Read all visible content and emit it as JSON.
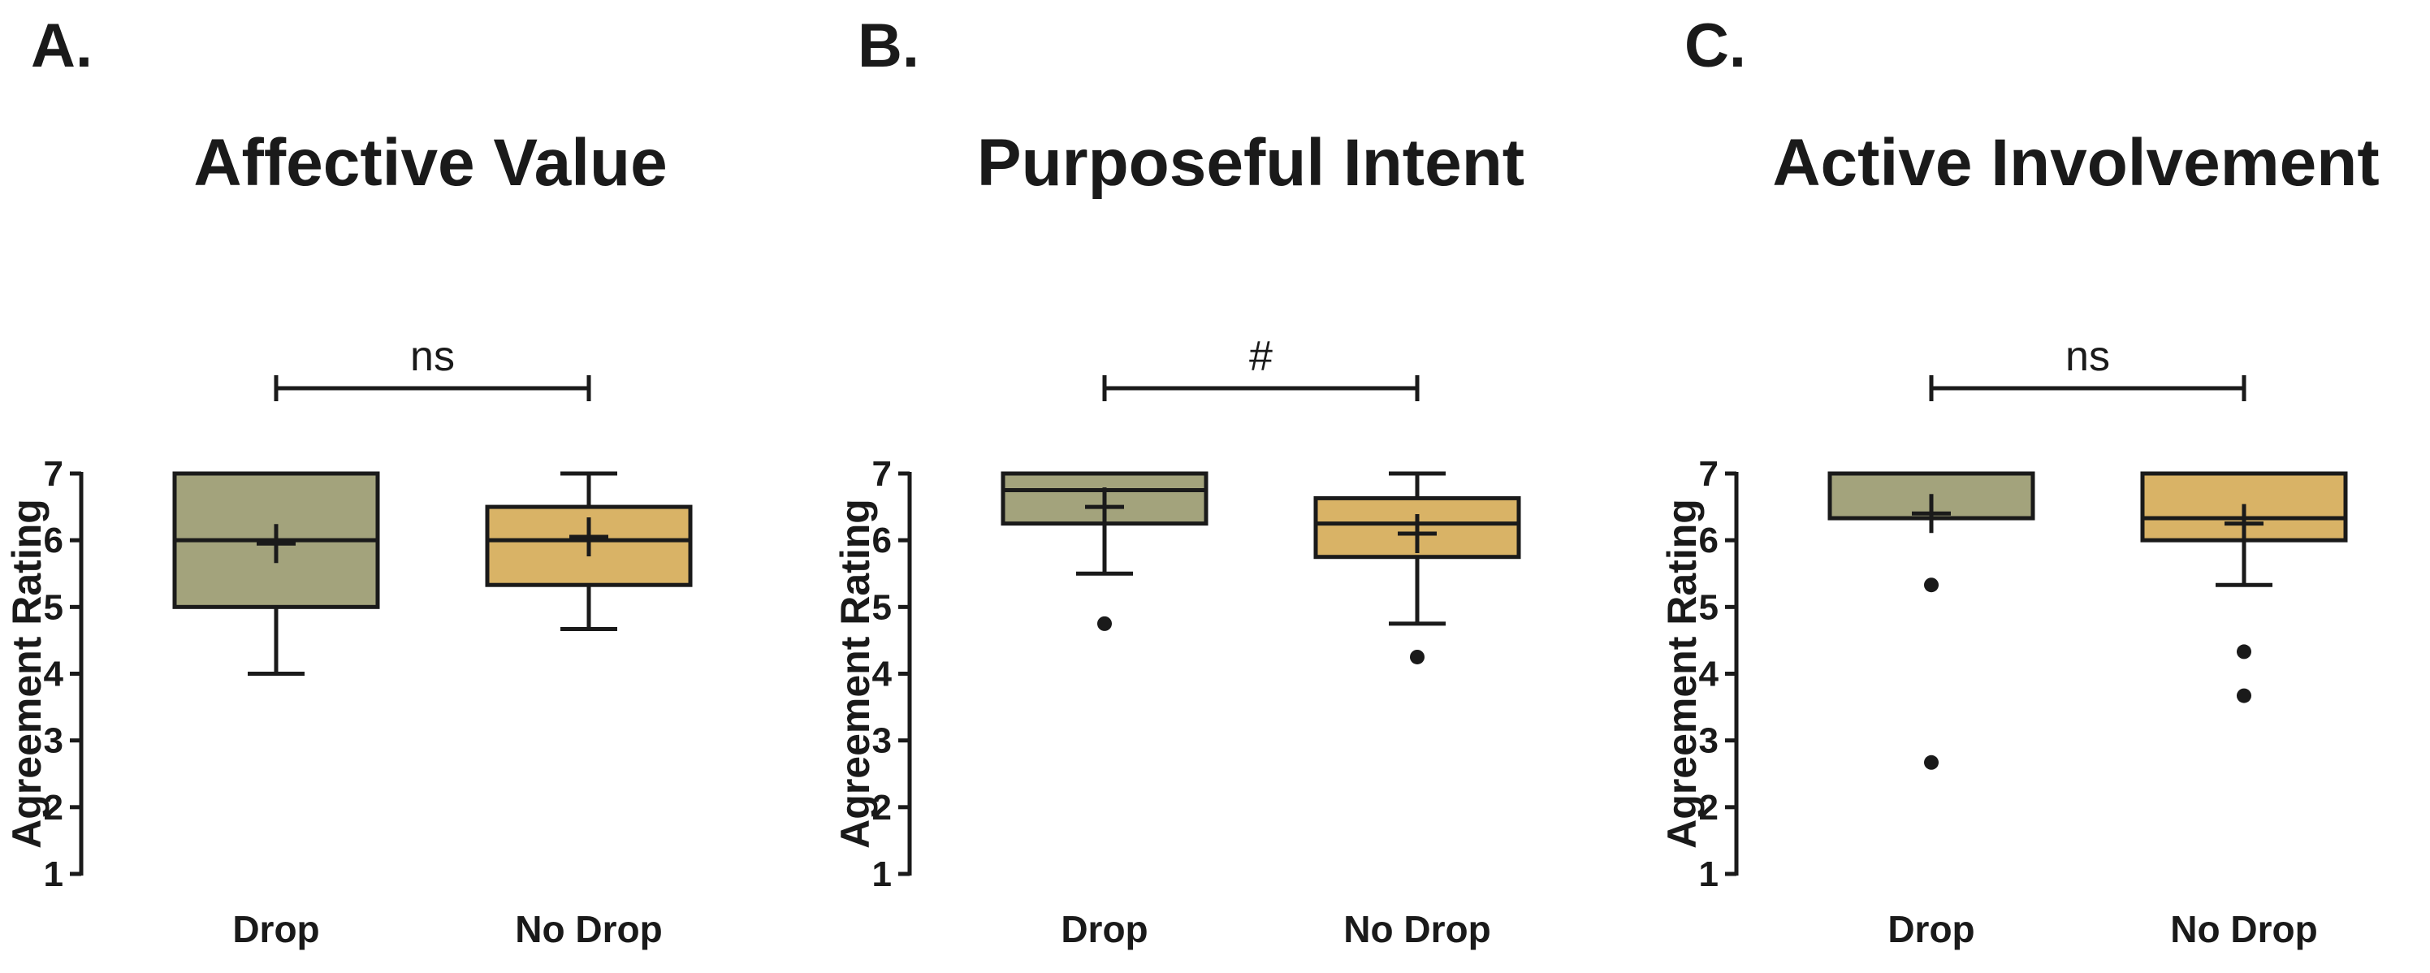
{
  "chart_data": [
    {
      "type": "box",
      "panel_label": "A.",
      "title": "Affective Value",
      "ylabel": "Agreement Rating",
      "ylim": [
        1,
        7
      ],
      "yticks": [
        "1",
        "2",
        "3",
        "4",
        "5",
        "6",
        "7"
      ],
      "categories": [
        "Drop",
        "No Drop"
      ],
      "significance": "ns",
      "boxes": [
        {
          "name": "Drop",
          "color": "#a3a37c",
          "whisker_low": 4,
          "q1": 5,
          "median": 6,
          "q3": 7,
          "whisker_high": 7,
          "mean": 5.95,
          "outliers": []
        },
        {
          "name": "No Drop",
          "color": "#d9b366",
          "whisker_low": 4.67,
          "q1": 5.33,
          "median": 6,
          "q3": 6.5,
          "whisker_high": 7,
          "mean": 6.05,
          "outliers": []
        }
      ]
    },
    {
      "type": "box",
      "panel_label": "B.",
      "title": "Purposeful Intent",
      "ylabel": "Agreement Rating",
      "ylim": [
        1,
        7
      ],
      "yticks": [
        "1",
        "2",
        "3",
        "4",
        "5",
        "6",
        "7"
      ],
      "categories": [
        "Drop",
        "No Drop"
      ],
      "significance": "#",
      "boxes": [
        {
          "name": "Drop",
          "color": "#a3a37c",
          "whisker_low": 5.5,
          "q1": 6.25,
          "median": 6.75,
          "q3": 7,
          "whisker_high": 7,
          "mean": 6.5,
          "outliers": [
            4.75
          ]
        },
        {
          "name": "No Drop",
          "color": "#d9b366",
          "whisker_low": 4.75,
          "q1": 5.75,
          "median": 6.25,
          "q3": 6.63,
          "whisker_high": 7,
          "mean": 6.1,
          "outliers": [
            4.25
          ]
        }
      ]
    },
    {
      "type": "box",
      "panel_label": "C.",
      "title": "Active Involvement",
      "ylabel": "Agreement Rating",
      "ylim": [
        1,
        7
      ],
      "yticks": [
        "1",
        "2",
        "3",
        "4",
        "5",
        "6",
        "7"
      ],
      "categories": [
        "Drop",
        "No Drop"
      ],
      "significance": "ns",
      "boxes": [
        {
          "name": "Drop",
          "color": "#a3a37c",
          "whisker_low": 6.33,
          "q1": 6.33,
          "median": 6.33,
          "q3": 7,
          "whisker_high": 7,
          "mean": 6.4,
          "outliers": [
            5.33,
            2.67
          ]
        },
        {
          "name": "No Drop",
          "color": "#d9b366",
          "whisker_low": 5.33,
          "q1": 6,
          "median": 6.33,
          "q3": 7,
          "whisker_high": 7,
          "mean": 6.25,
          "outliers": [
            4.33,
            3.67
          ]
        }
      ]
    }
  ]
}
